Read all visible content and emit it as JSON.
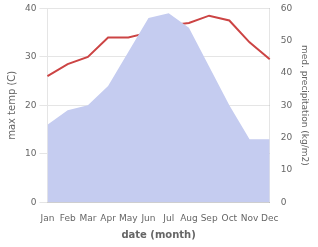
{
  "chart_data": {
    "type": "line",
    "xlabel": "date (month)",
    "ylabel": "max temp (C)",
    "y2label": "med. precipitation (kg/m2)",
    "categories": [
      "Jan",
      "Feb",
      "Mar",
      "Apr",
      "May",
      "Jun",
      "Jul",
      "Aug",
      "Sep",
      "Oct",
      "Nov",
      "Dec"
    ],
    "series": [
      {
        "type": "area",
        "color": "#c5ccf0",
        "values": [
          16,
          19,
          20,
          24,
          31,
          38,
          39,
          36,
          28,
          20,
          13,
          13
        ]
      },
      {
        "type": "line",
        "color": "#cc4444",
        "values": [
          26,
          28.5,
          30,
          34,
          34,
          35,
          36.5,
          37,
          38.5,
          37.5,
          33,
          29.5
        ]
      }
    ],
    "ylim": [
      0,
      40
    ],
    "yticks": [
      0,
      10,
      20,
      30,
      40
    ],
    "y2lim": [
      0,
      60
    ],
    "y2ticks": [
      0,
      10,
      20,
      30,
      40,
      50,
      60
    ],
    "grid": true
  }
}
